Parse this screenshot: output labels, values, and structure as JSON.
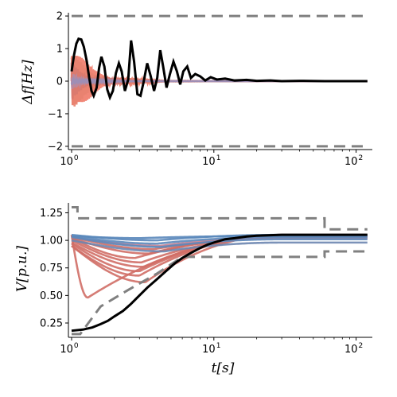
{
  "chart_data": [
    {
      "type": "line",
      "xscale": "log",
      "xlim": [
        0.95,
        130
      ],
      "ylim": [
        -2.1,
        2.1
      ],
      "ylabel": "Δf[Hz]",
      "xlabel": "",
      "grid": false,
      "x_ticks": [
        {
          "value": 1,
          "base": "10",
          "exp": "0"
        },
        {
          "value": 10,
          "base": "10",
          "exp": "1"
        },
        {
          "value": 100,
          "base": "10",
          "exp": "2"
        }
      ],
      "y_ticks": [
        {
          "value": -2,
          "label": "−2"
        },
        {
          "value": -1,
          "label": "−1"
        },
        {
          "value": 0,
          "label": "0"
        },
        {
          "value": 1,
          "label": "1"
        },
        {
          "value": 2,
          "label": "2"
        }
      ],
      "limits": [
        {
          "style": "dashed",
          "color": "#808080",
          "x": [
            1,
            120
          ],
          "y": [
            2,
            2
          ]
        },
        {
          "style": "dashed",
          "color": "#808080",
          "x": [
            1,
            120
          ],
          "y": [
            -2,
            -2
          ]
        }
      ],
      "series": [
        {
          "color": "#f07a68",
          "kind": "oscillation",
          "amp": 1.1,
          "cycles": 38,
          "decay": 2.4
        },
        {
          "color": "#e8826f",
          "kind": "oscillation",
          "amp": 0.9,
          "cycles": 33,
          "decay": 2.6
        },
        {
          "color": "#d9796e",
          "kind": "oscillation",
          "amp": 0.6,
          "cycles": 29,
          "decay": 2.9
        },
        {
          "color": "#b88aa0",
          "kind": "oscillation",
          "amp": 0.35,
          "cycles": 25,
          "decay": 3.0
        },
        {
          "color": "#9a8fb8",
          "kind": "oscillation",
          "amp": 0.2,
          "cycles": 21,
          "decay": 3.3
        },
        {
          "color": "#000000",
          "kind": "reference",
          "x": [
            1.0,
            1.04,
            1.08,
            1.12,
            1.17,
            1.22,
            1.28,
            1.33,
            1.38,
            1.43,
            1.5,
            1.56,
            1.62,
            1.7,
            1.78,
            1.86,
            1.95,
            2.05,
            2.15,
            2.25,
            2.37,
            2.5,
            2.62,
            2.75,
            2.9,
            3.05,
            3.2,
            3.4,
            3.6,
            3.8,
            4.0,
            4.2,
            4.4,
            4.65,
            4.9,
            5.2,
            5.5,
            5.8,
            6.1,
            6.5,
            6.9,
            7.4,
            8.0,
            8.7,
            9.5,
            10.5,
            12,
            14,
            17,
            20,
            25,
            30,
            40,
            60,
            80,
            120
          ],
          "y": [
            0.3,
            0.8,
            1.15,
            1.3,
            1.28,
            1.05,
            0.6,
            0.1,
            -0.3,
            -0.45,
            -0.2,
            0.4,
            0.75,
            0.45,
            -0.25,
            -0.5,
            -0.3,
            0.25,
            0.55,
            0.3,
            -0.3,
            0.05,
            1.25,
            0.6,
            -0.4,
            -0.45,
            -0.05,
            0.55,
            0.15,
            -0.3,
            0.1,
            0.95,
            0.45,
            -0.2,
            0.2,
            0.6,
            0.3,
            -0.1,
            0.3,
            0.45,
            0.1,
            0.22,
            0.15,
            0.02,
            0.12,
            0.05,
            0.08,
            0.02,
            0.04,
            0.01,
            0.02,
            0.0,
            0.01,
            0.0,
            0.0,
            0.0
          ]
        }
      ]
    },
    {
      "type": "line",
      "xscale": "log",
      "xlim": [
        0.95,
        130
      ],
      "ylim": [
        0.12,
        1.34
      ],
      "ylabel": "V[p.u.]",
      "xlabel": "t[s]",
      "grid": false,
      "x_ticks": [
        {
          "value": 1,
          "base": "10",
          "exp": "0"
        },
        {
          "value": 10,
          "base": "10",
          "exp": "1"
        },
        {
          "value": 100,
          "base": "10",
          "exp": "2"
        }
      ],
      "y_ticks": [
        {
          "value": 0.25,
          "label": "0.25"
        },
        {
          "value": 0.5,
          "label": "0.50"
        },
        {
          "value": 0.75,
          "label": "0.75"
        },
        {
          "value": 1.0,
          "label": "1.00"
        },
        {
          "value": 1.25,
          "label": "1.25"
        }
      ],
      "limits": [
        {
          "style": "dashed",
          "color": "#808080",
          "x": [
            1.0,
            1.1,
            1.1,
            2.0,
            2.0,
            60,
            60,
            120
          ],
          "y": [
            1.3,
            1.3,
            1.2,
            1.2,
            1.2,
            1.2,
            1.1,
            1.1
          ]
        },
        {
          "style": "dashed",
          "color": "#808080",
          "x": [
            1.0,
            1.15,
            1.6,
            2.5,
            4.0,
            6.0,
            6.0,
            20,
            20,
            60,
            60,
            120
          ],
          "y": [
            0.15,
            0.15,
            0.4,
            0.55,
            0.7,
            0.85,
            0.85,
            0.85,
            0.85,
            0.85,
            0.9,
            0.9
          ]
        }
      ],
      "series": [
        {
          "color": "#d06e66",
          "start": 1.05,
          "dip": 0.48,
          "tdip": 1.3,
          "end": 1.04
        },
        {
          "color": "#d06e66",
          "start": 0.95,
          "dip": 0.62,
          "tdip": 3.3,
          "end": 1.05
        },
        {
          "color": "#d06e66",
          "start": 0.95,
          "dip": 0.68,
          "tdip": 3.0,
          "end": 1.05
        },
        {
          "color": "#d06e66",
          "start": 0.97,
          "dip": 0.72,
          "tdip": 3.0,
          "end": 1.04
        },
        {
          "color": "#d06e66",
          "start": 0.98,
          "dip": 0.76,
          "tdip": 3.2,
          "end": 1.04
        },
        {
          "color": "#d06e66",
          "start": 1.0,
          "dip": 0.8,
          "tdip": 3.1,
          "end": 1.03
        },
        {
          "color": "#d06e66",
          "start": 1.02,
          "dip": 0.84,
          "tdip": 2.8,
          "end": 1.03
        },
        {
          "color": "#d06e66",
          "start": 1.02,
          "dip": 0.88,
          "tdip": 3.5,
          "end": 1.03
        },
        {
          "color": "#d06e66",
          "start": 1.03,
          "dip": 0.92,
          "tdip": 3.8,
          "end": 1.02
        },
        {
          "color": "#c98090",
          "start": 1.03,
          "dip": 0.95,
          "tdip": 4.2,
          "end": 1.02
        },
        {
          "color": "#6d86b0",
          "start": 1.0,
          "dip": 0.9,
          "tdip": 4.5,
          "end": 0.98
        },
        {
          "color": "#5b88bb",
          "start": 1.03,
          "dip": 0.94,
          "tdip": 4.3,
          "end": 1.01
        },
        {
          "color": "#5b88bb",
          "start": 1.04,
          "dip": 0.97,
          "tdip": 4.0,
          "end": 1.03
        },
        {
          "color": "#5b88bb",
          "start": 1.05,
          "dip": 1.0,
          "tdip": 4.0,
          "end": 1.05
        },
        {
          "color": "#5b88bb",
          "start": 1.04,
          "dip": 1.02,
          "tdip": 3.0,
          "end": 1.04
        },
        {
          "color": "#000000",
          "kind": "reference",
          "x": [
            1.0,
            1.2,
            1.4,
            1.6,
            1.8,
            2.0,
            2.3,
            2.6,
            3.0,
            3.4,
            4.0,
            4.6,
            5.3,
            6.0,
            7.0,
            8.0,
            9.0,
            10,
            12,
            14,
            17,
            20,
            25,
            30,
            40,
            60,
            80,
            120
          ],
          "y": [
            0.18,
            0.19,
            0.21,
            0.24,
            0.27,
            0.31,
            0.36,
            0.42,
            0.5,
            0.57,
            0.65,
            0.72,
            0.79,
            0.84,
            0.89,
            0.93,
            0.96,
            0.98,
            1.01,
            1.02,
            1.035,
            1.042,
            1.047,
            1.05,
            1.05,
            1.05,
            1.05,
            1.05
          ]
        }
      ]
    }
  ]
}
